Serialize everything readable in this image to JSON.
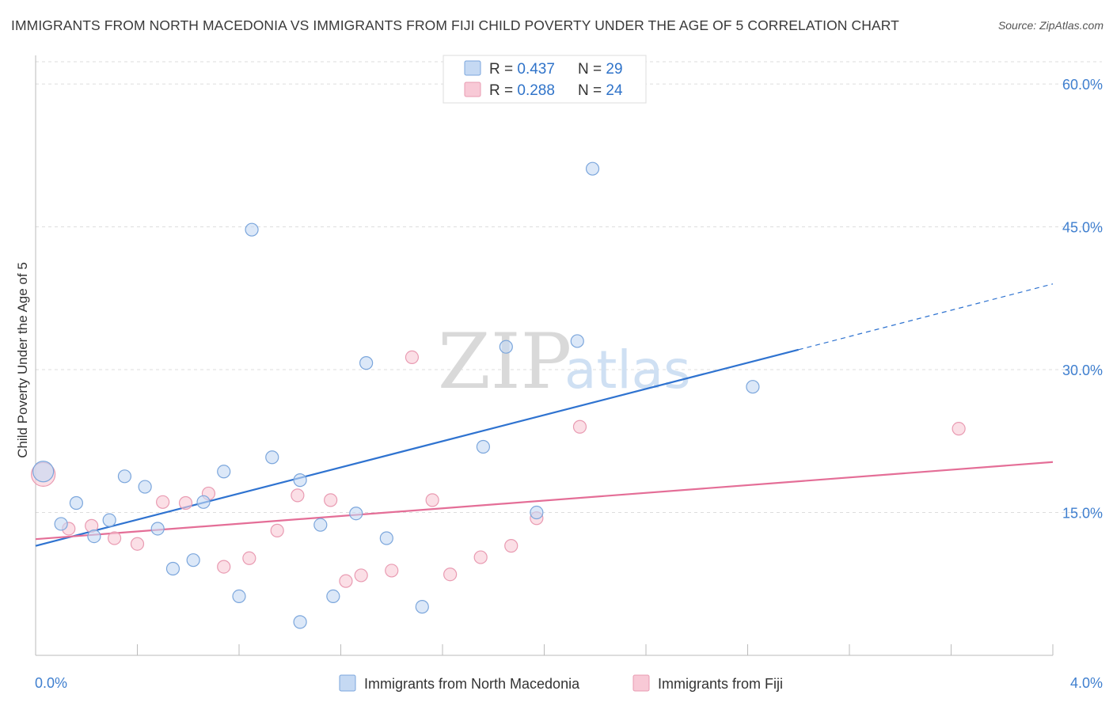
{
  "title": "IMMIGRANTS FROM NORTH MACEDONIA VS IMMIGRANTS FROM FIJI CHILD POVERTY UNDER THE AGE OF 5 CORRELATION CHART",
  "source": "Source: ZipAtlas.com",
  "watermark": {
    "zip": "ZIP",
    "atlas": "atlas"
  },
  "colors": {
    "blue_fill": "#c5d9f3",
    "blue_stroke": "#7ba6dc",
    "blue_line": "#2f73d0",
    "pink_fill": "#f8c9d6",
    "pink_stroke": "#e99bb2",
    "pink_line": "#e46e97",
    "tick_text": "#3f7fcf",
    "grid": "#dddddd"
  },
  "legend": {
    "rows": [
      {
        "r_label": "R = ",
        "r_value": "0.437",
        "n_label": "N = ",
        "n_value": "29"
      },
      {
        "r_label": "R = ",
        "r_value": "0.288",
        "n_label": "N = ",
        "n_value": "24"
      }
    ]
  },
  "chart_data": {
    "type": "scatter",
    "title": "IMMIGRANTS FROM NORTH MACEDONIA VS IMMIGRANTS FROM FIJI CHILD POVERTY UNDER THE AGE OF 5 CORRELATION CHART",
    "xlabel": "",
    "ylabel": "Child Poverty Under the Age of 5",
    "xlim": [
      0,
      4.0
    ],
    "ylim": [
      0,
      63
    ],
    "x_tick_labels": [
      "0.0%",
      "4.0%"
    ],
    "x_tick_values": [
      0,
      4.0
    ],
    "y_tick_labels": [
      "15.0%",
      "30.0%",
      "45.0%",
      "60.0%"
    ],
    "y_tick_values": [
      15,
      30,
      45,
      60
    ],
    "grid": "horizontal dashed",
    "legend_position": "top-center",
    "series": [
      {
        "name": "Immigrants from North Macedonia",
        "r": 0.437,
        "n": 29,
        "points": [
          [
            0.03,
            19.3
          ],
          [
            0.1,
            13.8
          ],
          [
            0.16,
            16.0
          ],
          [
            0.23,
            12.5
          ],
          [
            0.29,
            14.2
          ],
          [
            0.35,
            18.8
          ],
          [
            0.43,
            17.7
          ],
          [
            0.48,
            13.3
          ],
          [
            0.54,
            9.1
          ],
          [
            0.62,
            10.0
          ],
          [
            0.66,
            16.1
          ],
          [
            0.74,
            19.3
          ],
          [
            0.8,
            6.2
          ],
          [
            0.85,
            44.7
          ],
          [
            0.93,
            20.8
          ],
          [
            1.04,
            18.4
          ],
          [
            1.04,
            3.5
          ],
          [
            1.12,
            13.7
          ],
          [
            1.17,
            6.2
          ],
          [
            1.26,
            14.9
          ],
          [
            1.3,
            30.7
          ],
          [
            1.38,
            12.3
          ],
          [
            1.52,
            5.1
          ],
          [
            1.76,
            21.9
          ],
          [
            1.85,
            32.4
          ],
          [
            1.97,
            15.0
          ],
          [
            2.13,
            33.0
          ],
          [
            2.19,
            51.1
          ],
          [
            2.82,
            28.2
          ]
        ],
        "trend": {
          "x0": 0.0,
          "y0": 11.5,
          "x1": 3.0,
          "y1": 32.1,
          "dashed_to_x": 4.0,
          "dashed_to_y": 39.0
        }
      },
      {
        "name": "Immigrants from Fiji",
        "r": 0.288,
        "n": 24,
        "points": [
          [
            0.03,
            19.0
          ],
          [
            0.13,
            13.3
          ],
          [
            0.22,
            13.6
          ],
          [
            0.31,
            12.3
          ],
          [
            0.4,
            11.7
          ],
          [
            0.5,
            16.1
          ],
          [
            0.59,
            16.0
          ],
          [
            0.68,
            17.0
          ],
          [
            0.74,
            9.3
          ],
          [
            0.84,
            10.2
          ],
          [
            0.95,
            13.1
          ],
          [
            1.03,
            16.8
          ],
          [
            1.16,
            16.3
          ],
          [
            1.22,
            7.8
          ],
          [
            1.28,
            8.4
          ],
          [
            1.4,
            8.9
          ],
          [
            1.48,
            31.3
          ],
          [
            1.56,
            16.3
          ],
          [
            1.63,
            8.5
          ],
          [
            1.75,
            10.3
          ],
          [
            1.87,
            11.5
          ],
          [
            1.97,
            14.4
          ],
          [
            2.14,
            24.0
          ],
          [
            3.63,
            23.8
          ]
        ],
        "trend": {
          "x0": 0.0,
          "y0": 12.2,
          "x1": 4.0,
          "y1": 20.3
        }
      }
    ]
  }
}
